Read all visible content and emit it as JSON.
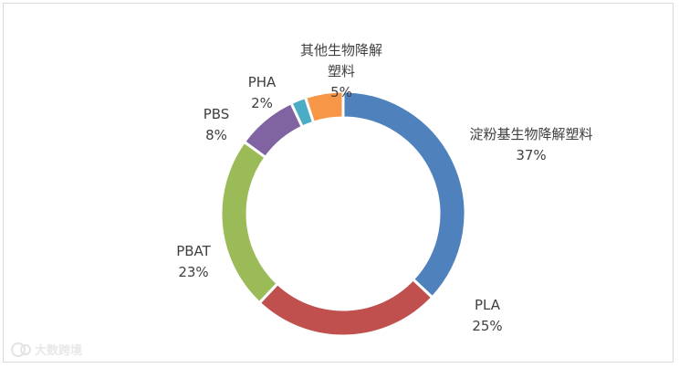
{
  "chart_data": {
    "type": "pie",
    "variant": "donut",
    "slices": [
      {
        "name": "淀粉基生物降解塑料",
        "value": 37,
        "label": "37%",
        "color": "#4f81bd"
      },
      {
        "name": "PLA",
        "value": 25,
        "label": "25%",
        "color": "#c0504d"
      },
      {
        "name": "PBAT",
        "value": 23,
        "label": "23%",
        "color": "#9bbb59"
      },
      {
        "name": "PBS",
        "value": 8,
        "label": "8%",
        "color": "#8064a2"
      },
      {
        "name": "PHA",
        "value": 2,
        "label": "2%",
        "color": "#4bacc6"
      },
      {
        "name": "其他生物降解塑料",
        "name_lines": [
          "其他生物降解",
          "塑料"
        ],
        "value": 5,
        "label": "5%",
        "color": "#f79646"
      }
    ],
    "legend": "none"
  },
  "watermark": {
    "text": "大数跨境",
    "logo": "k0"
  }
}
